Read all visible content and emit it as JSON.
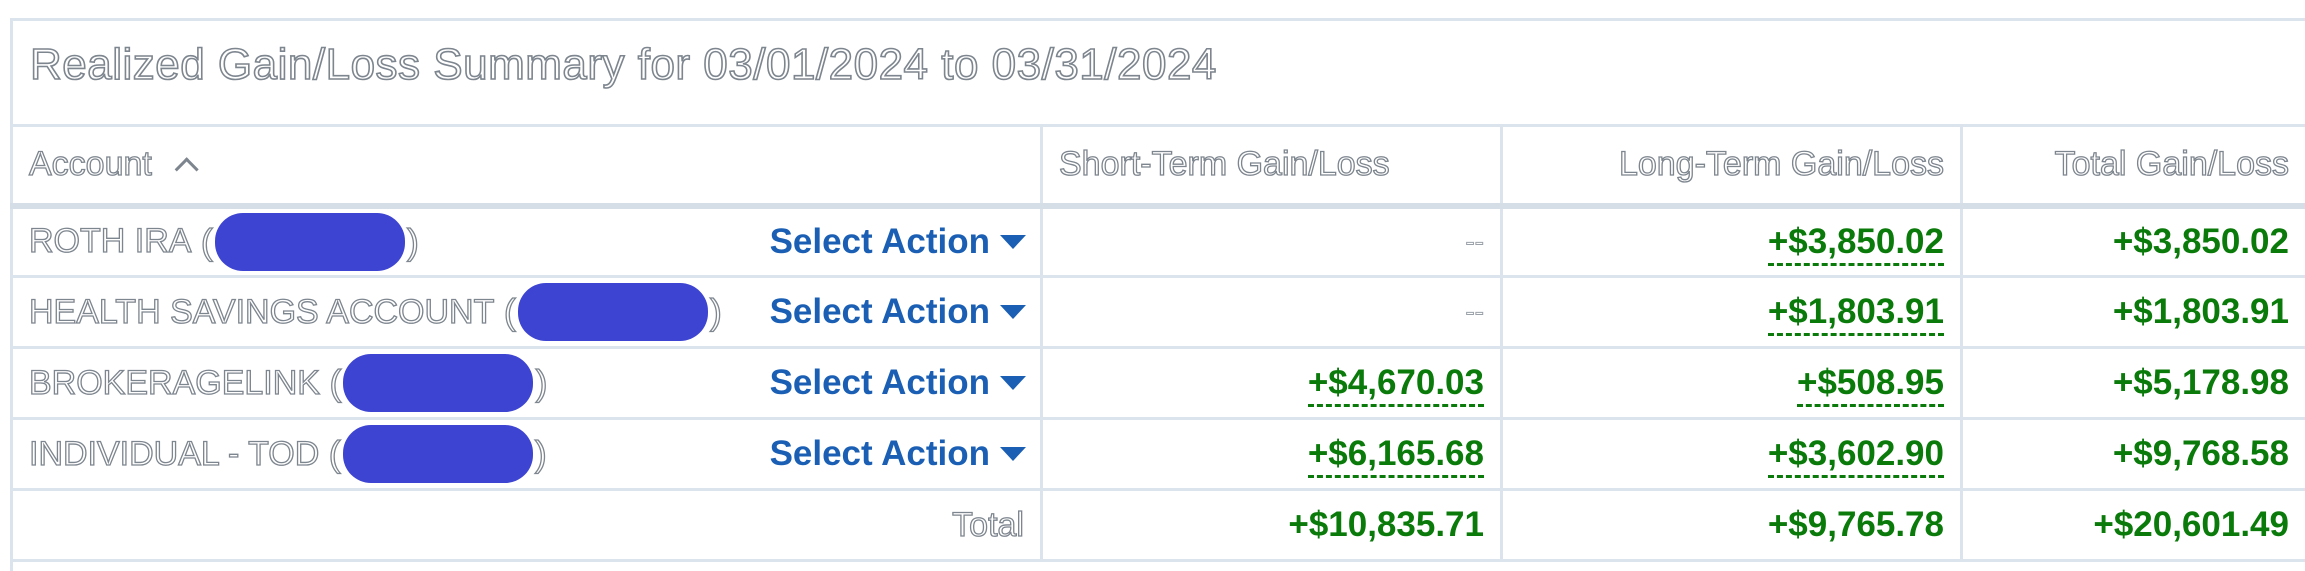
{
  "title": "Realized Gain/Loss Summary for 03/01/2024 to 03/31/2024",
  "columns": {
    "account": "Account",
    "short_term": "Short-Term Gain/Loss",
    "long_term": "Long-Term Gain/Loss",
    "total": "Total Gain/Loss"
  },
  "action_label": "Select Action",
  "rows": [
    {
      "name": "ROTH IRA",
      "short_term": "--",
      "long_term": "+$3,850.02",
      "total": "+$3,850.02"
    },
    {
      "name": "HEALTH SAVINGS ACCOUNT",
      "short_term": "--",
      "long_term": "+$1,803.91",
      "total": "+$1,803.91"
    },
    {
      "name": "BROKERAGELINK",
      "short_term": "+$4,670.03",
      "long_term": "+$508.95",
      "total": "+$5,178.98"
    },
    {
      "name": "INDIVIDUAL - TOD",
      "short_term": "+$6,165.68",
      "long_term": "+$3,602.90",
      "total": "+$9,768.58"
    }
  ],
  "totals": {
    "label": "Total",
    "short_term": "+$10,835.71",
    "long_term": "+$9,765.78",
    "total": "+$20,601.49"
  },
  "colors": {
    "gain": "#0a7a0a",
    "action": "#1a5fb4",
    "redaction": "#3e44d2"
  },
  "icons": {
    "sort": "chevron-up-icon",
    "action": "caret-down-icon"
  }
}
